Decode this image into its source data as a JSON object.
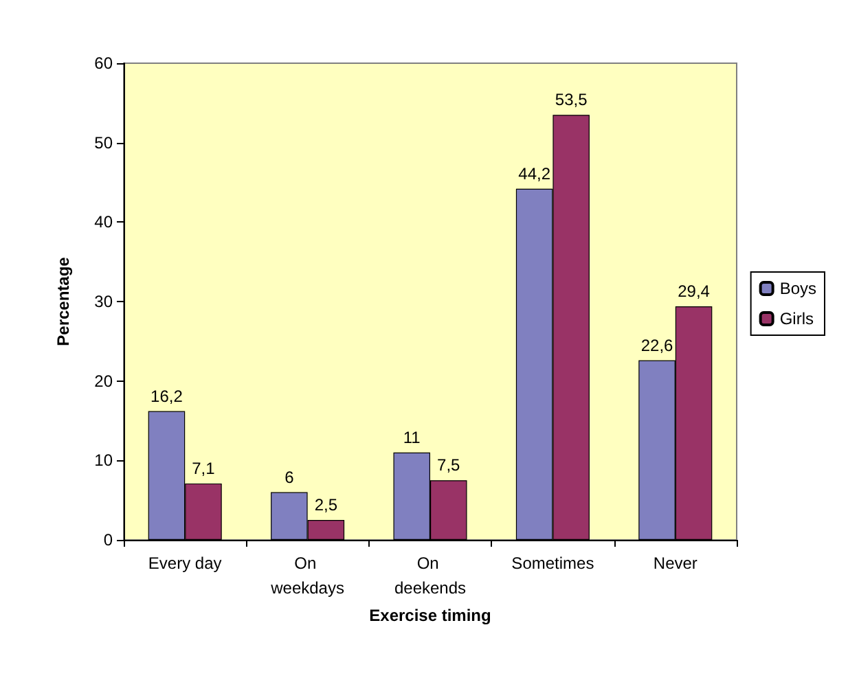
{
  "chart_data": {
    "type": "bar",
    "xlabel": "Exercise timing",
    "ylabel": "Percentage",
    "categories": [
      "Every day",
      "On weekdays",
      "On deekends",
      "Sometimes",
      "Never"
    ],
    "series": [
      {
        "name": "Boys",
        "color": "#8080c0",
        "values": [
          16.2,
          6,
          11,
          44.2,
          22.6
        ],
        "value_labels": [
          "16,2",
          "6",
          "11",
          "44,2",
          "22,6"
        ]
      },
      {
        "name": "Girls",
        "color": "#993366",
        "values": [
          7.1,
          2.5,
          7.5,
          53.5,
          29.4
        ],
        "value_labels": [
          "7,1",
          "2,5",
          "7,5",
          "53,5",
          "29,4"
        ]
      }
    ],
    "ylim": [
      0,
      60
    ],
    "yticks": [
      0,
      10,
      20,
      30,
      40,
      50,
      60
    ],
    "grid": false,
    "legend": "right"
  }
}
